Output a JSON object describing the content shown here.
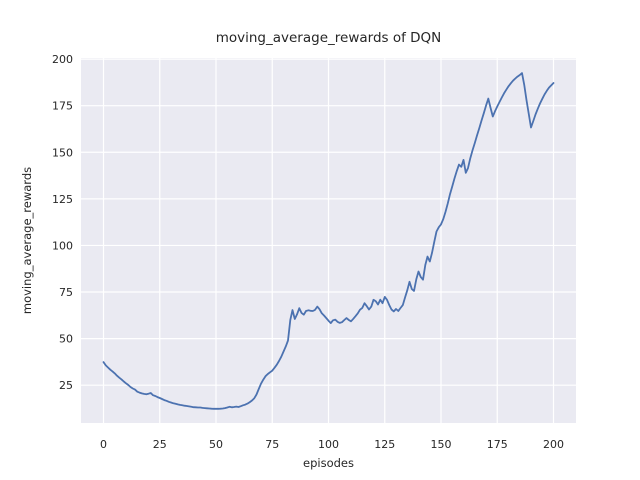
{
  "chart_data": {
    "type": "line",
    "title": "moving_average_rewards of DQN",
    "xlabel": "episodes",
    "ylabel": "moving_average_rewards",
    "x_ticks": [
      0,
      25,
      50,
      75,
      100,
      125,
      150,
      175,
      200
    ],
    "y_ticks": [
      25,
      50,
      75,
      100,
      125,
      150,
      175,
      200
    ],
    "xlim": [
      -10,
      210
    ],
    "ylim": [
      4.7,
      200.6
    ],
    "grid": true,
    "legend": "none",
    "style": {
      "figure_bg": "#FFFFFF",
      "axes_bg": "#EAEAF2",
      "grid_color": "#FFFFFF",
      "text_color": "#262626",
      "line_color": "#4C72B0",
      "line_width": 1.8
    },
    "series": [
      {
        "name": "DQN moving average reward",
        "color": "#4C72B0",
        "x_start": 0,
        "x_step": 1,
        "values": [
          37.4,
          35.6,
          34.5,
          33.3,
          32.4,
          31.3,
          30.1,
          29.0,
          28.1,
          27.0,
          26.0,
          25.1,
          24.0,
          23.2,
          22.6,
          21.5,
          21.0,
          20.6,
          20.3,
          20.1,
          20.4,
          20.8,
          19.6,
          19.2,
          18.6,
          18.1,
          17.6,
          17.0,
          16.6,
          16.1,
          15.7,
          15.3,
          15.0,
          14.7,
          14.4,
          14.2,
          14.0,
          13.8,
          13.6,
          13.4,
          13.2,
          13.1,
          13.0,
          13.0,
          12.8,
          12.7,
          12.6,
          12.5,
          12.4,
          12.3,
          12.3,
          12.3,
          12.4,
          12.5,
          12.7,
          13.0,
          13.4,
          13.1,
          13.3,
          13.5,
          13.3,
          13.7,
          14.2,
          14.6,
          15.1,
          15.9,
          16.8,
          18.0,
          20.0,
          23.0,
          25.8,
          28.0,
          29.8,
          31.0,
          31.9,
          32.8,
          34.3,
          36.0,
          38.0,
          40.3,
          43.0,
          45.8,
          49.0,
          60.0,
          65.3,
          60.5,
          63.0,
          66.3,
          63.8,
          62.8,
          64.8,
          65.2,
          64.9,
          64.8,
          65.4,
          67.2,
          65.8,
          63.6,
          62.4,
          61.0,
          59.6,
          58.3,
          59.8,
          60.2,
          59.0,
          58.4,
          58.8,
          60.0,
          61.0,
          60.0,
          59.3,
          60.6,
          62.0,
          63.6,
          65.5,
          66.5,
          69.0,
          67.4,
          65.6,
          67.2,
          70.8,
          70.0,
          68.3,
          70.9,
          69.0,
          72.4,
          70.8,
          68.0,
          65.6,
          64.6,
          65.9,
          64.8,
          66.4,
          68.0,
          72.0,
          76.0,
          80.5,
          76.6,
          75.6,
          81.8,
          86.0,
          83.0,
          81.6,
          89.5,
          94.0,
          91.4,
          96.0,
          102.0,
          107.5,
          109.8,
          111.3,
          114.2,
          118.0,
          122.6,
          127.5,
          131.8,
          136.0,
          140.0,
          143.4,
          142.2,
          145.9,
          139.0,
          141.5,
          146.8,
          151.0,
          155.0,
          159.0,
          163.0,
          167.0,
          171.0,
          175.0,
          178.8,
          174.0,
          169.2,
          172.0,
          174.6,
          177.0,
          179.4,
          181.6,
          183.6,
          185.4,
          187.0,
          188.4,
          189.6,
          190.6,
          191.5,
          192.5,
          186.0,
          178.0,
          170.5,
          163.3,
          166.8,
          170.3,
          173.4,
          176.2,
          178.7,
          181.0,
          183.0,
          184.7,
          186.0,
          187.2
        ]
      }
    ]
  }
}
